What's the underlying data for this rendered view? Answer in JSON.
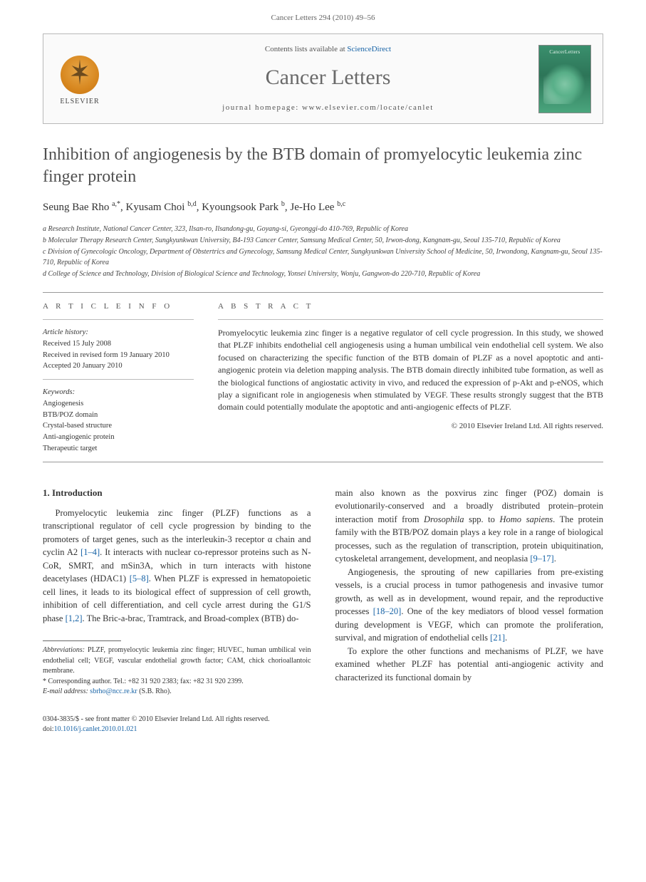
{
  "header": {
    "running_head": "Cancer Letters 294 (2010) 49–56"
  },
  "banner": {
    "publisher": "ELSEVIER",
    "contents_prefix": "Contents lists available at ",
    "contents_link": "ScienceDirect",
    "journal_name": "Cancer Letters",
    "homepage_line": "journal homepage: www.elsevier.com/locate/canlet",
    "cover_label": "CancerLetters"
  },
  "article": {
    "title": "Inhibition of angiogenesis by the BTB domain of promyelocytic leukemia zinc finger protein",
    "authors_html": "Seung Bae Rho <sup>a,*</sup>, Kyusam Choi <sup>b,d</sup>, Kyoungsook Park <sup>b</sup>, Je-Ho Lee <sup>b,c</sup>",
    "affiliations": [
      "a Research Institute, National Cancer Center, 323, Ilsan-ro, Ilsandong-gu, Goyang-si, Gyeonggi-do 410-769, Republic of Korea",
      "b Molecular Therapy Research Center, Sungkyunkwan University, B4-193 Cancer Center, Samsung Medical Center, 50, Irwon-dong, Kangnam-gu, Seoul 135-710, Republic of Korea",
      "c Division of Gynecologic Oncology, Department of Obstertrics and Gynecology, Samsung Medical Center, Sungkyunkwan University School of Medicine, 50, Irwondong, Kangnam-gu, Seoul 135-710, Republic of Korea",
      "d College of Science and Technology, Division of Biological Science and Technology, Yonsei University, Wonju, Gangwon-do 220-710, Republic of Korea"
    ]
  },
  "info": {
    "label": "A R T I C L E   I N F O",
    "history_heading": "Article history:",
    "history": [
      "Received 15 July 2008",
      "Received in revised form 19 January 2010",
      "Accepted 20 January 2010"
    ],
    "keywords_heading": "Keywords:",
    "keywords": [
      "Angiogenesis",
      "BTB/POZ domain",
      "Crystal-based structure",
      "Anti-angiogenic protein",
      "Therapeutic target"
    ]
  },
  "abstract": {
    "label": "A B S T R A C T",
    "text": "Promyelocytic leukemia zinc finger is a negative regulator of cell cycle progression. In this study, we showed that PLZF inhibits endothelial cell angiogenesis using a human umbilical vein endothelial cell system. We also focused on characterizing the specific function of the BTB domain of PLZF as a novel apoptotic and anti-angiogenic protein via deletion mapping analysis. The BTB domain directly inhibited tube formation, as well as the biological functions of angiostatic activity in vivo, and reduced the expression of p-Akt and p-eNOS, which play a significant role in angiogenesis when stimulated by VEGF. These results strongly suggest that the BTB domain could potentially modulate the apoptotic and anti-angiogenic effects of PLZF.",
    "copyright": "© 2010 Elsevier Ireland Ltd. All rights reserved."
  },
  "body": {
    "section_number": "1.",
    "section_title": "Introduction",
    "col1_p1": "Promyelocytic leukemia zinc finger (PLZF) functions as a transcriptional regulator of cell cycle progression by binding to the promoters of target genes, such as the interleukin-3 receptor α chain and cyclin A2 [1–4]. It interacts with nuclear co-repressor proteins such as N-CoR, SMRT, and mSin3A, which in turn interacts with histone deacetylases (HDAC1) [5–8]. When PLZF is expressed in hematopoietic cell lines, it leads to its biological effect of suppression of cell growth, inhibition of cell differentiation, and cell cycle arrest during the G1/S phase [1,2]. The Bric-a-brac, Tramtrack, and Broad-complex (BTB) do-",
    "col2_p1": "main also known as the poxvirus zinc finger (POZ) domain is evolutionarily-conserved and a broadly distributed protein–protein interaction motif from Drosophila spp. to Homo sapiens. The protein family with the BTB/POZ domain plays a key role in a range of biological processes, such as the regulation of transcription, protein ubiquitination, cytoskeletal arrangement, development, and neoplasia [9–17].",
    "col2_p2": "Angiogenesis, the sprouting of new capillaries from pre-existing vessels, is a crucial process in tumor pathogenesis and invasive tumor growth, as well as in development, wound repair, and the reproductive processes [18–20]. One of the key mediators of blood vessel formation during development is VEGF, which can promote the proliferation, survival, and migration of endothelial cells [21].",
    "col2_p3": "To explore the other functions and mechanisms of PLZF, we have examined whether PLZF has potential anti-angiogenic activity and characterized its functional domain by"
  },
  "footnotes": {
    "abbrev_label": "Abbreviations:",
    "abbrev_text": " PLZF, promyelocytic leukemia zinc finger; HUVEC, human umbilical vein endothelial cell; VEGF, vascular endothelial growth factor; CAM, chick chorioallantoic membrane.",
    "corr_label": "* Corresponding author.",
    "corr_text": " Tel.: +82 31 920 2383; fax: +82 31 920 2399.",
    "email_label": "E-mail address: ",
    "email": "sbrho@ncc.re.kr",
    "email_suffix": " (S.B. Rho)."
  },
  "footer": {
    "left_line1": "0304-3835/$ - see front matter © 2010 Elsevier Ireland Ltd. All rights reserved.",
    "left_line2_prefix": "doi:",
    "doi": "10.1016/j.canlet.2010.01.021"
  },
  "colors": {
    "link": "#1763a6",
    "title_gray": "#505050",
    "rule": "#999999",
    "cover_bg": "#3a8f6d"
  }
}
